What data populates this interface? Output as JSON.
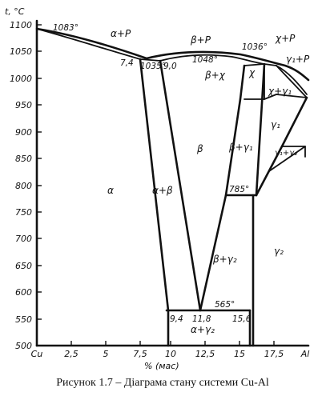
{
  "diagram": {
    "y_axis_title": "t, °C",
    "x_axis_title": "% (мас)",
    "y_ticks": [
      "1100",
      "1050",
      "1000",
      "950",
      "900",
      "850",
      "800",
      "750",
      "700",
      "650",
      "600",
      "550",
      "500"
    ],
    "x_ticks": [
      "Cu",
      "2,5",
      "5",
      "7,5",
      "10",
      "12,5",
      "15",
      "17,5",
      "Al"
    ],
    "regions": {
      "alpha_liquid": "α+P",
      "beta_liquid": "β+P",
      "chi_liquid": "χ+P",
      "gamma1_liquid": "γ₁+P",
      "beta_chi": "β+χ",
      "chi": "χ",
      "chi_gamma1": "χ+γ₁",
      "gamma1": "γ₁",
      "beta": "β",
      "beta_gamma1": "β+γ₁",
      "gamma1_gamma2": "γ₁+γ₂",
      "alpha": "α",
      "alpha_beta": "α+β",
      "beta_gamma2": "β+γ₂",
      "gamma2": "γ₂",
      "alpha_gamma2": "α+γ₂"
    },
    "points": {
      "t1083": "1083°",
      "c74": "7,4",
      "t1035": "1035°",
      "c90": "9,0",
      "t1048": "1048°",
      "t1036": "1036°",
      "t785": "785°",
      "t565": "565°",
      "c94": "9,4",
      "c118": "11,8",
      "c156": "15,6"
    }
  },
  "caption": "Рисунок 1.7 – Діаграма стану системи Cu-Al"
}
